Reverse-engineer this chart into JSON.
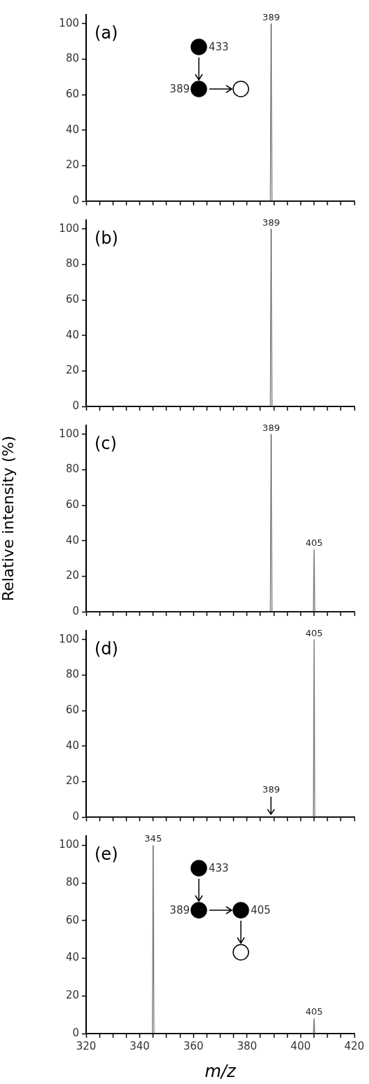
{
  "chart_data": [
    {
      "type": "line",
      "title": "(a)",
      "x": [
        320,
        388.7,
        389,
        389.3,
        420
      ],
      "series": [
        {
          "color": "#555555",
          "values": [
            0,
            0,
            100,
            0,
            0
          ]
        }
      ],
      "xlim": [
        320,
        420
      ],
      "xticks": [
        320,
        {
          "value": 325,
          "label": null
        },
        {
          "value": 330,
          "label": null
        },
        {
          "value": 335,
          "label": null
        },
        340,
        {
          "value": 345,
          "label": null
        },
        {
          "value": 350,
          "label": null
        },
        {
          "value": 355,
          "label": null
        },
        360,
        {
          "value": 365,
          "label": null
        },
        {
          "value": 370,
          "label": null
        },
        {
          "value": 375,
          "label": null
        },
        380,
        {
          "value": 385,
          "label": null
        },
        {
          "value": 390,
          "label": null
        },
        {
          "value": 395,
          "label": null
        },
        400,
        {
          "value": 405,
          "label": null
        },
        {
          "value": 410,
          "label": null
        },
        {
          "value": 415,
          "label": null
        },
        420
      ],
      "ylim": [
        0,
        105
      ],
      "yticks": [
        0,
        20,
        40,
        60,
        80,
        100
      ],
      "tick_labels": "y",
      "marker": "none",
      "annotations": [
        {
          "text": "389",
          "x": 389,
          "y": 100
        },
        "433",
        "389"
      ]
    },
    {
      "type": "line",
      "title": "(b)",
      "x": [
        320,
        388.7,
        389,
        389.3,
        420
      ],
      "series": [
        {
          "color": "#555555",
          "values": [
            0,
            0,
            100,
            0,
            0
          ]
        }
      ],
      "xlim": [
        320,
        420
      ],
      "xticks": [
        320,
        {
          "value": 325,
          "label": null
        },
        {
          "value": 330,
          "label": null
        },
        {
          "value": 335,
          "label": null
        },
        340,
        {
          "value": 345,
          "label": null
        },
        {
          "value": 350,
          "label": null
        },
        {
          "value": 355,
          "label": null
        },
        360,
        {
          "value": 365,
          "label": null
        },
        {
          "value": 370,
          "label": null
        },
        {
          "value": 375,
          "label": null
        },
        380,
        {
          "value": 385,
          "label": null
        },
        {
          "value": 390,
          "label": null
        },
        {
          "value": 395,
          "label": null
        },
        400,
        {
          "value": 405,
          "label": null
        },
        {
          "value": 410,
          "label": null
        },
        {
          "value": 415,
          "label": null
        },
        420
      ],
      "ylim": [
        0,
        105
      ],
      "yticks": [
        0,
        20,
        40,
        60,
        80,
        100
      ],
      "tick_labels": "y",
      "marker": "none",
      "annotations": [
        {
          "text": "389",
          "x": 389,
          "y": 100
        }
      ]
    },
    {
      "type": "line",
      "title": "(c)",
      "ylabel": "Relative intensity (%)",
      "x": [
        320,
        388.7,
        389,
        389.3,
        404.7,
        405,
        405.3,
        420
      ],
      "series": [
        {
          "color": "#555555",
          "values": [
            0,
            0,
            100,
            0,
            0,
            35,
            0,
            0
          ]
        }
      ],
      "xlim": [
        320,
        420
      ],
      "xticks": [
        320,
        {
          "value": 325,
          "label": null
        },
        {
          "value": 330,
          "label": null
        },
        {
          "value": 335,
          "label": null
        },
        340,
        {
          "value": 345,
          "label": null
        },
        {
          "value": 350,
          "label": null
        },
        {
          "value": 355,
          "label": null
        },
        360,
        {
          "value": 365,
          "label": null
        },
        {
          "value": 370,
          "label": null
        },
        {
          "value": 375,
          "label": null
        },
        380,
        {
          "value": 385,
          "label": null
        },
        {
          "value": 390,
          "label": null
        },
        {
          "value": 395,
          "label": null
        },
        400,
        {
          "value": 405,
          "label": null
        },
        {
          "value": 410,
          "label": null
        },
        {
          "value": 415,
          "label": null
        },
        420
      ],
      "ylim": [
        0,
        105
      ],
      "yticks": [
        0,
        20,
        40,
        60,
        80,
        100
      ],
      "tick_labels": "y",
      "marker": "none",
      "annotations": [
        {
          "text": "389",
          "x": 389,
          "y": 100
        },
        {
          "text": "405",
          "x": 405,
          "y": 35
        }
      ]
    },
    {
      "type": "line",
      "title": "(d)",
      "x": [
        320,
        404.7,
        405,
        405.3,
        420
      ],
      "series": [
        {
          "color": "#555555",
          "values": [
            0,
            0,
            100,
            0,
            0
          ]
        }
      ],
      "xlim": [
        320,
        420
      ],
      "xticks": [
        320,
        {
          "value": 325,
          "label": null
        },
        {
          "value": 330,
          "label": null
        },
        {
          "value": 335,
          "label": null
        },
        340,
        {
          "value": 345,
          "label": null
        },
        {
          "value": 350,
          "label": null
        },
        {
          "value": 355,
          "label": null
        },
        360,
        {
          "value": 365,
          "label": null
        },
        {
          "value": 370,
          "label": null
        },
        {
          "value": 375,
          "label": null
        },
        380,
        {
          "value": 385,
          "label": null
        },
        {
          "value": 390,
          "label": null
        },
        {
          "value": 395,
          "label": null
        },
        400,
        {
          "value": 405,
          "label": null
        },
        {
          "value": 410,
          "label": null
        },
        {
          "value": 415,
          "label": null
        },
        420
      ],
      "ylim": [
        0,
        105
      ],
      "yticks": [
        0,
        20,
        40,
        60,
        80,
        100
      ],
      "tick_labels": "y",
      "marker": "none",
      "annotations": [
        {
          "text": "405",
          "x": 405,
          "y": 100
        },
        {
          "text": "389",
          "x": 389,
          "y": 0
        }
      ]
    },
    {
      "type": "line",
      "title": "(e)",
      "xlabel": "m/z",
      "x": [
        320,
        344.7,
        345,
        345.3,
        404.7,
        405,
        405.3,
        420
      ],
      "series": [
        {
          "color": "#555555",
          "values": [
            0,
            0,
            100,
            0,
            0,
            8,
            0,
            0
          ]
        }
      ],
      "xlim": [
        320,
        420
      ],
      "xticks": [
        320,
        {
          "value": 325,
          "label": null
        },
        {
          "value": 330,
          "label": null
        },
        {
          "value": 335,
          "label": null
        },
        340,
        {
          "value": 345,
          "label": null
        },
        {
          "value": 350,
          "label": null
        },
        {
          "value": 355,
          "label": null
        },
        360,
        {
          "value": 365,
          "label": null
        },
        {
          "value": 370,
          "label": null
        },
        {
          "value": 375,
          "label": null
        },
        380,
        {
          "value": 385,
          "label": null
        },
        {
          "value": 390,
          "label": null
        },
        {
          "value": 395,
          "label": null
        },
        400,
        {
          "value": 405,
          "label": null
        },
        {
          "value": 410,
          "label": null
        },
        {
          "value": 415,
          "label": null
        },
        420
      ],
      "ylim": [
        0,
        105
      ],
      "yticks": [
        0,
        20,
        40,
        60,
        80,
        100
      ],
      "marker": "none",
      "annotations": [
        {
          "text": "345",
          "x": 345,
          "y": 100
        },
        {
          "text": "405",
          "x": 405,
          "y": 8
        },
        "433",
        "389",
        "405"
      ]
    }
  ]
}
